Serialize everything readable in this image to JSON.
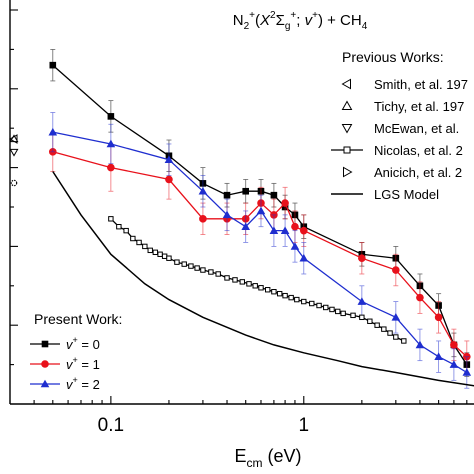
{
  "chart_data": {
    "type": "line",
    "x_scale": "log",
    "xlim": [
      0.03,
      8
    ],
    "ylim": [
      0,
      1
    ],
    "title_parts": {
      "base": "N",
      "sub1": "2",
      "sup1": "+",
      "open": "(",
      "x": "X",
      "sup2": "2",
      "sigma": "Σ",
      "sub2": "g",
      "sup3": "+",
      "sep": "; ",
      "v": "v",
      "sup4": "+",
      "close": ") + CH",
      "sub3": "4"
    },
    "xlabel_parts": {
      "base": "E",
      "sub": "cm",
      "unit": " (eV)"
    },
    "x_tick_labels": [
      {
        "value": 0.1,
        "label": "0.1"
      },
      {
        "value": 1,
        "label": "1"
      }
    ],
    "present_work_title": "Present Work:",
    "previous_works_title": "Previous Works:",
    "series": [
      {
        "name": "v+ = 0",
        "label_value": "0",
        "color": "#000000",
        "marker": "square",
        "x": [
          0.05,
          0.1,
          0.2,
          0.3,
          0.4,
          0.5,
          0.6,
          0.7,
          0.8,
          0.9,
          1.0,
          2.0,
          3.0,
          4.0,
          5.0,
          6.0,
          7.0
        ],
        "y": [
          0.86,
          0.73,
          0.63,
          0.56,
          0.53,
          0.54,
          0.54,
          0.53,
          0.5,
          0.48,
          0.45,
          0.38,
          0.37,
          0.3,
          0.25,
          0.15,
          0.1
        ],
        "err": [
          0.04,
          0.04,
          0.04,
          0.04,
          0.03,
          0.03,
          0.03,
          0.03,
          0.03,
          0.03,
          0.03,
          0.03,
          0.03,
          0.03,
          0.03,
          0.03,
          0.03
        ]
      },
      {
        "name": "v+ = 1",
        "label_value": "1",
        "color": "#e8111b",
        "marker": "circle",
        "x": [
          0.05,
          0.1,
          0.2,
          0.3,
          0.4,
          0.5,
          0.6,
          0.7,
          0.8,
          0.9,
          1.0,
          2.0,
          3.0,
          4.0,
          5.0,
          6.0,
          7.0
        ],
        "y": [
          0.64,
          0.6,
          0.57,
          0.47,
          0.47,
          0.47,
          0.51,
          0.48,
          0.51,
          0.45,
          0.44,
          0.37,
          0.34,
          0.27,
          0.22,
          0.15,
          0.12
        ],
        "err": [
          0.05,
          0.06,
          0.05,
          0.04,
          0.04,
          0.04,
          0.04,
          0.04,
          0.04,
          0.04,
          0.04,
          0.04,
          0.04,
          0.04,
          0.04,
          0.04,
          0.04
        ]
      },
      {
        "name": "v+ = 2",
        "label_value": "2",
        "color": "#1f2ecf",
        "marker": "triangle-up",
        "x": [
          0.05,
          0.1,
          0.2,
          0.3,
          0.4,
          0.5,
          0.6,
          0.7,
          0.8,
          0.9,
          1.0,
          2.0,
          3.0,
          4.0,
          5.0,
          6.0,
          7.0
        ],
        "y": [
          0.69,
          0.66,
          0.62,
          0.54,
          0.48,
          0.45,
          0.49,
          0.44,
          0.44,
          0.4,
          0.37,
          0.26,
          0.22,
          0.15,
          0.12,
          0.1,
          0.08
        ],
        "err": [
          0.05,
          0.05,
          0.04,
          0.04,
          0.04,
          0.04,
          0.04,
          0.04,
          0.04,
          0.04,
          0.04,
          0.04,
          0.04,
          0.04,
          0.04,
          0.04,
          0.04
        ]
      },
      {
        "name": "Nicolas, et al. 2",
        "color": "#000000",
        "marker": "open-square",
        "x": [
          0.1,
          0.11,
          0.12,
          0.13,
          0.14,
          0.15,
          0.16,
          0.17,
          0.18,
          0.19,
          0.2,
          0.22,
          0.24,
          0.26,
          0.28,
          0.3,
          0.33,
          0.36,
          0.4,
          0.44,
          0.48,
          0.52,
          0.56,
          0.6,
          0.65,
          0.7,
          0.75,
          0.8,
          0.86,
          0.92,
          1.0,
          1.1,
          1.2,
          1.3,
          1.4,
          1.5,
          1.6,
          1.8,
          2.0,
          2.2,
          2.4,
          2.6,
          2.8,
          3.0,
          3.3
        ],
        "y": [
          0.47,
          0.45,
          0.44,
          0.42,
          0.41,
          0.4,
          0.39,
          0.385,
          0.38,
          0.375,
          0.37,
          0.36,
          0.355,
          0.35,
          0.345,
          0.34,
          0.335,
          0.33,
          0.32,
          0.315,
          0.31,
          0.305,
          0.3,
          0.295,
          0.29,
          0.285,
          0.28,
          0.275,
          0.27,
          0.265,
          0.26,
          0.255,
          0.25,
          0.245,
          0.24,
          0.235,
          0.23,
          0.225,
          0.22,
          0.21,
          0.2,
          0.19,
          0.18,
          0.17,
          0.16
        ]
      },
      {
        "name": "LGS Model",
        "color": "#000000",
        "marker": "none",
        "x": [
          0.05,
          0.07,
          0.1,
          0.15,
          0.2,
          0.3,
          0.5,
          0.7,
          1.0,
          1.5,
          2.0,
          3.0,
          5.0,
          8.0
        ],
        "y": [
          0.59,
          0.48,
          0.38,
          0.305,
          0.265,
          0.22,
          0.175,
          0.15,
          0.13,
          0.11,
          0.095,
          0.08,
          0.06,
          0.045
        ]
      }
    ],
    "previous_works": [
      {
        "marker": "triangle-left",
        "label": "Smith, et al. 197"
      },
      {
        "marker": "triangle-up-open",
        "label": "Tichy, et al. 197"
      },
      {
        "marker": "triangle-down-open",
        "label": "McEwan, et al."
      },
      {
        "marker": "open-square",
        "label": "Nicolas, et al. 2"
      },
      {
        "marker": "triangle-right",
        "label": "Anicich, et al. 2"
      },
      {
        "marker": "line",
        "label": "LGS Model"
      }
    ],
    "present_label_prefix": "v",
    "present_label_sup": "+",
    "present_label_eq": " = "
  }
}
